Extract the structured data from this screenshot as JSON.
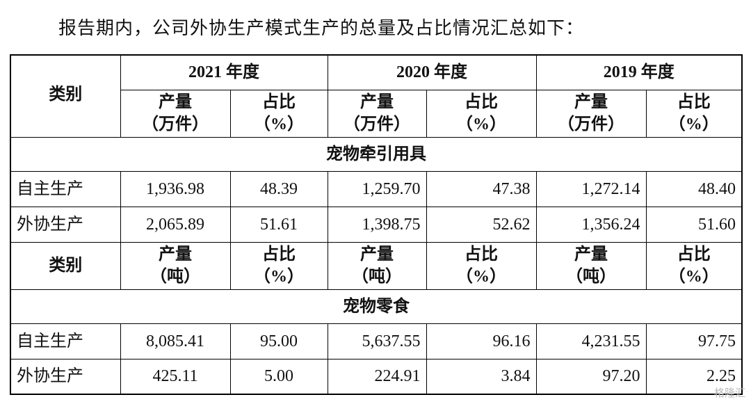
{
  "intro": "报告期内，公司外协生产模式生产的总量及占比情况汇总如下：",
  "table": {
    "years": [
      "2021 年度",
      "2020 年度",
      "2019 年度"
    ],
    "sections": [
      {
        "header": {
          "category": "类别",
          "cells": [
            [
              "产量",
              "（万件）"
            ],
            [
              "占比",
              "（%）"
            ],
            [
              "产量",
              "（万件）"
            ],
            [
              "占比",
              "（%）"
            ],
            [
              "产量",
              "（万件）"
            ],
            [
              "占比",
              "（%）"
            ]
          ]
        },
        "title": "宠物牵引用具",
        "rows": [
          {
            "label": "自主生产",
            "values": [
              "1,936.98",
              "48.39",
              "1,259.70",
              "47.38",
              "1,272.14",
              "48.40"
            ]
          },
          {
            "label": "外协生产",
            "values": [
              "2,065.89",
              "51.61",
              "1,398.75",
              "52.62",
              "1,356.24",
              "51.60"
            ]
          }
        ]
      },
      {
        "header": {
          "category": "类别",
          "cells": [
            [
              "产量",
              "（吨）"
            ],
            [
              "占比",
              "（%）"
            ],
            [
              "产量",
              "（吨）"
            ],
            [
              "占比",
              "（%）"
            ],
            [
              "产量",
              "（吨）"
            ],
            [
              "占比",
              "（%）"
            ]
          ]
        },
        "title": "宠物零食",
        "rows": [
          {
            "label": "自主生产",
            "values": [
              "8,085.41",
              "95.00",
              "5,637.55",
              "96.16",
              "4,231.55",
              "97.75"
            ]
          },
          {
            "label": "外协生产",
            "values": [
              "425.11",
              "5.00",
              "224.91",
              "3.84",
              "97.20",
              "2.25"
            ]
          }
        ]
      }
    ]
  },
  "watermark": "格隆汇"
}
